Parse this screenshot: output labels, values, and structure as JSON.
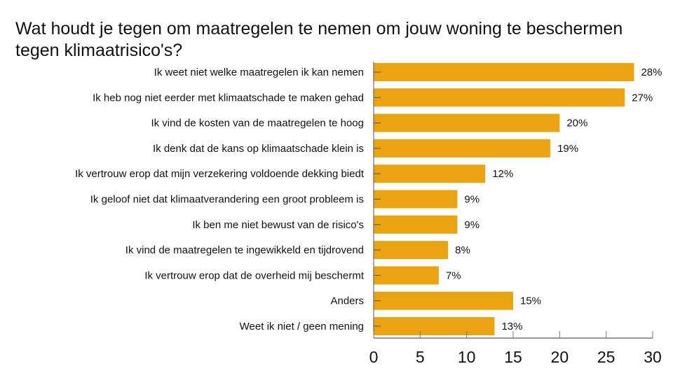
{
  "chart_data": {
    "type": "bar",
    "orientation": "horizontal",
    "title": "Wat houdt je tegen om maatregelen te nemen om jouw woning te beschermen tegen klimaatrisico's?",
    "categories": [
      "Ik weet niet welke maatregelen ik kan nemen",
      "Ik heb nog niet eerder met klimaatschade te maken gehad",
      "Ik vind de kosten van de maatregelen te hoog",
      "Ik denk dat de kans op klimaatschade klein is",
      "Ik vertrouw erop dat mijn verzekering voldoende dekking biedt",
      "Ik geloof niet dat klimaatverandering een groot probleem is",
      "Ik ben me niet bewust van de risico's",
      "Ik vind de maatregelen te ingewikkeld en tijdrovend",
      "Ik vertrouw erop dat de overheid mij beschermt",
      "Anders",
      "Weet ik niet / geen mening"
    ],
    "values": [
      28,
      27,
      20,
      19,
      12,
      9,
      9,
      8,
      7,
      15,
      13
    ],
    "data_labels": [
      "28%",
      "27%",
      "20%",
      "19%",
      "12%",
      "9%",
      "9%",
      "8%",
      "7%",
      "15%",
      "13%"
    ],
    "xlim": [
      0,
      30
    ],
    "x_ticks": [
      "0",
      "5",
      "10",
      "15",
      "20",
      "25",
      "30"
    ],
    "xlabel": "",
    "ylabel": "",
    "grid": false,
    "legend": "none",
    "bar_color": "#eba411"
  }
}
